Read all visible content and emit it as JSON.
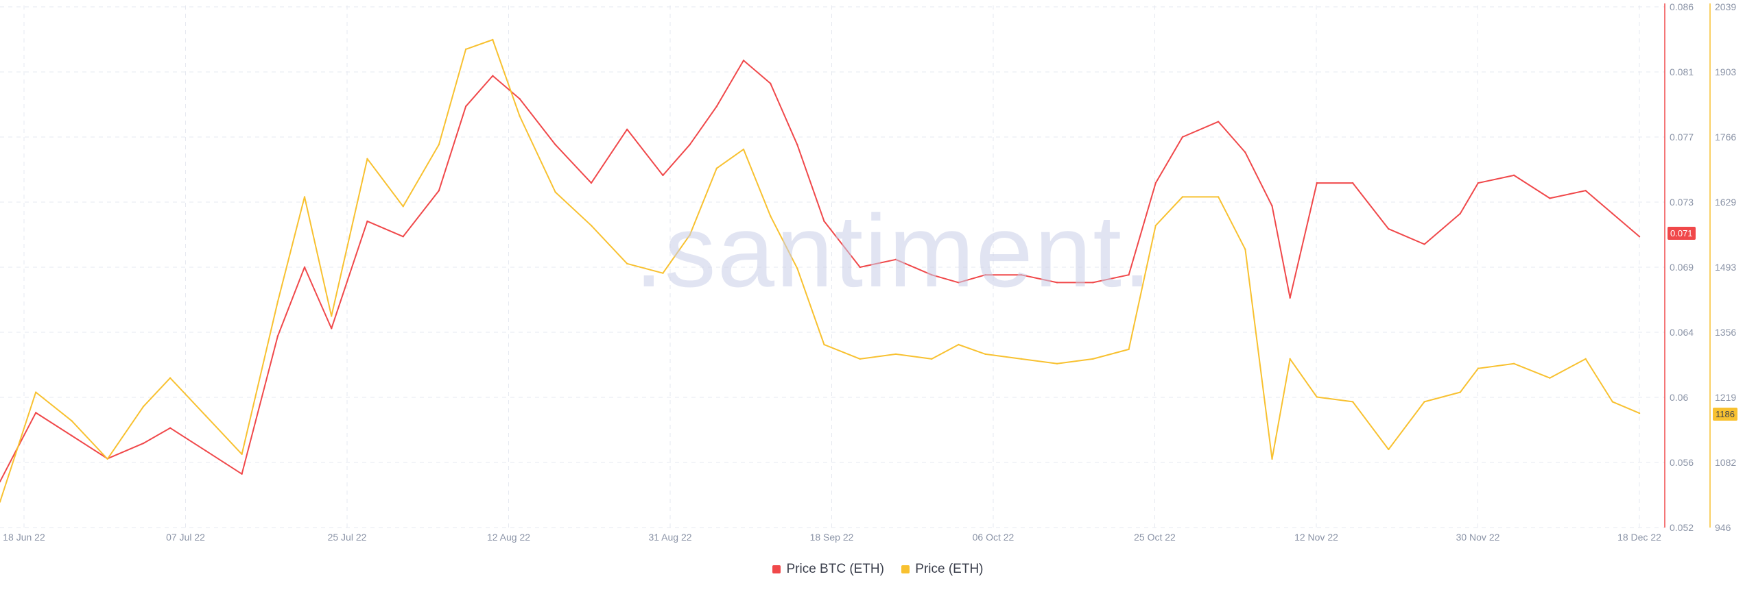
{
  "watermark": ".santiment.",
  "colors": {
    "btc": "#f0484a",
    "eth": "#f8c130",
    "grid": "#e6e9f0",
    "axis_text": "#8a93a6"
  },
  "legend": [
    {
      "label": "Price BTC (ETH)",
      "color": "#f0484a"
    },
    {
      "label": "Price (ETH)",
      "color": "#f8c130"
    }
  ],
  "badges": {
    "btc_last": "0.071",
    "eth_last": "1186"
  },
  "chart_data": {
    "type": "line",
    "x_ticks": [
      "18 Jun 22",
      "07 Jul 22",
      "25 Jul 22",
      "12 Aug 22",
      "31 Aug 22",
      "18 Sep 22",
      "06 Oct 22",
      "25 Oct 22",
      "12 Nov 22",
      "30 Nov 22",
      "18 Dec 22"
    ],
    "y_left_ticks": [
      "0.086",
      "0.081",
      "0.077",
      "0.073",
      "0.069",
      "0.064",
      "0.06",
      "0.056",
      "0.052"
    ],
    "y_right_ticks": [
      "2039",
      "1903",
      "1766",
      "1629",
      "1493",
      "1356",
      "1219",
      "1082",
      "946"
    ],
    "y_left_range": [
      0.052,
      0.086
    ],
    "y_right_range": [
      946,
      2039
    ],
    "grid": true,
    "legend_position": "bottom-center",
    "series": [
      {
        "name": "Price BTC (ETH)",
        "axis": "left",
        "color": "#f0484a",
        "x": [
          "18 Jun 22",
          "22 Jun 22",
          "26 Jun 22",
          "30 Jun 22",
          "04 Jul 22",
          "07 Jul 22",
          "11 Jul 22",
          "15 Jul 22",
          "19 Jul 22",
          "22 Jul 22",
          "25 Jul 22",
          "29 Jul 22",
          "02 Aug 22",
          "06 Aug 22",
          "09 Aug 22",
          "12 Aug 22",
          "15 Aug 22",
          "19 Aug 22",
          "23 Aug 22",
          "27 Aug 22",
          "31 Aug 22",
          "03 Sep 22",
          "06 Sep 22",
          "09 Sep 22",
          "12 Sep 22",
          "15 Sep 22",
          "18 Sep 22",
          "22 Sep 22",
          "26 Sep 22",
          "30 Sep 22",
          "03 Oct 22",
          "06 Oct 22",
          "10 Oct 22",
          "14 Oct 22",
          "18 Oct 22",
          "22 Oct 22",
          "25 Oct 22",
          "28 Oct 22",
          "01 Nov 22",
          "04 Nov 22",
          "07 Nov 22",
          "09 Nov 22",
          "12 Nov 22",
          "16 Nov 22",
          "20 Nov 22",
          "24 Nov 22",
          "28 Nov 22",
          "30 Nov 22",
          "04 Dec 22",
          "08 Dec 22",
          "12 Dec 22",
          "15 Dec 22",
          "18 Dec 22"
        ],
        "values": [
          0.055,
          0.0595,
          0.058,
          0.0565,
          0.0575,
          0.0585,
          0.057,
          0.0555,
          0.0645,
          0.069,
          0.065,
          0.072,
          0.071,
          0.074,
          0.0795,
          0.0815,
          0.08,
          0.077,
          0.0745,
          0.078,
          0.075,
          0.077,
          0.0795,
          0.0825,
          0.081,
          0.077,
          0.072,
          0.069,
          0.0695,
          0.0685,
          0.068,
          0.0685,
          0.0685,
          0.068,
          0.068,
          0.0685,
          0.0745,
          0.0775,
          0.0785,
          0.0765,
          0.073,
          0.067,
          0.0745,
          0.0745,
          0.0715,
          0.0705,
          0.0725,
          0.0745,
          0.075,
          0.0735,
          0.074,
          0.0725,
          0.071
        ]
      },
      {
        "name": "Price (ETH)",
        "axis": "right",
        "color": "#f8c130",
        "x": [
          "18 Jun 22",
          "22 Jun 22",
          "26 Jun 22",
          "30 Jun 22",
          "04 Jul 22",
          "07 Jul 22",
          "11 Jul 22",
          "15 Jul 22",
          "19 Jul 22",
          "22 Jul 22",
          "25 Jul 22",
          "29 Jul 22",
          "02 Aug 22",
          "06 Aug 22",
          "09 Aug 22",
          "12 Aug 22",
          "15 Aug 22",
          "19 Aug 22",
          "23 Aug 22",
          "27 Aug 22",
          "31 Aug 22",
          "03 Sep 22",
          "06 Sep 22",
          "09 Sep 22",
          "12 Sep 22",
          "15 Sep 22",
          "18 Sep 22",
          "22 Sep 22",
          "26 Sep 22",
          "30 Sep 22",
          "03 Oct 22",
          "06 Oct 22",
          "10 Oct 22",
          "14 Oct 22",
          "18 Oct 22",
          "22 Oct 22",
          "25 Oct 22",
          "28 Oct 22",
          "01 Nov 22",
          "04 Nov 22",
          "07 Nov 22",
          "09 Nov 22",
          "12 Nov 22",
          "16 Nov 22",
          "20 Nov 22",
          "24 Nov 22",
          "28 Nov 22",
          "30 Nov 22",
          "04 Dec 22",
          "08 Dec 22",
          "12 Dec 22",
          "15 Dec 22",
          "18 Dec 22"
        ],
        "values": [
          1000,
          1230,
          1170,
          1090,
          1200,
          1260,
          1180,
          1100,
          1420,
          1640,
          1390,
          1720,
          1620,
          1750,
          1950,
          1970,
          1810,
          1650,
          1580,
          1500,
          1480,
          1560,
          1700,
          1740,
          1600,
          1490,
          1330,
          1300,
          1310,
          1300,
          1330,
          1310,
          1300,
          1290,
          1300,
          1320,
          1580,
          1640,
          1640,
          1530,
          1090,
          1300,
          1220,
          1210,
          1110,
          1210,
          1230,
          1280,
          1290,
          1260,
          1300,
          1210,
          1186
        ]
      }
    ]
  }
}
